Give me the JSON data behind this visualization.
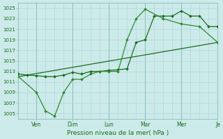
{
  "xlabel": "Pression niveau de la mer( hPa )",
  "ylim": [
    1004,
    1026
  ],
  "yticks": [
    1005,
    1007,
    1009,
    1011,
    1013,
    1015,
    1017,
    1019,
    1021,
    1023,
    1025
  ],
  "background_color": "#cceaea",
  "grid_minor_color": "#aad4d4",
  "grid_major_color": "#88bbbb",
  "line_color": "#1a6b1a",
  "line_color2": "#2d8a2d",
  "series1_x": [
    0,
    0.5,
    1,
    1.5,
    2,
    2.5,
    3,
    3.5,
    4,
    4.5,
    5,
    5.5,
    6,
    6.5,
    7,
    7.5,
    8,
    8.5,
    9,
    9.5,
    10,
    10.5,
    11
  ],
  "series1_y": [
    1012.5,
    1012.3,
    1012.2,
    1012.0,
    1012.0,
    1012.3,
    1012.8,
    1012.5,
    1013.0,
    1013.0,
    1013.2,
    1013.3,
    1013.5,
    1018.5,
    1019.0,
    1023.5,
    1023.5,
    1023.5,
    1024.5,
    1023.5,
    1023.5,
    1021.5,
    1021.5
  ],
  "series1_markers_x": [
    0,
    0.5,
    1,
    1.5,
    2,
    2.5,
    3,
    3.5,
    4,
    4.5,
    5,
    5.5,
    6,
    6.5,
    7,
    7.5,
    8,
    8.5,
    9,
    9.5,
    10,
    10.5,
    11
  ],
  "series2_x": [
    0,
    1,
    1.5,
    2,
    2.5,
    3,
    3.5,
    4,
    4.5,
    5,
    5.5,
    6,
    6.5,
    7,
    8,
    9,
    10,
    11
  ],
  "series2_y": [
    1012.0,
    1009.0,
    1005.5,
    1004.5,
    1009.0,
    1011.5,
    1011.5,
    1012.5,
    1013.0,
    1013.0,
    1013.0,
    1019.0,
    1023.0,
    1024.8,
    1023.0,
    1022.0,
    1021.5,
    1018.5
  ],
  "series3_x": [
    0,
    11
  ],
  "series3_y": [
    1012.0,
    1018.5
  ],
  "major_vline_x": [
    1,
    3,
    5,
    7,
    9,
    11
  ],
  "day_tick_x": [
    1,
    3,
    5,
    7,
    9,
    11
  ],
  "day_labels": [
    "Ven",
    "Dim",
    "Lun",
    "Mar",
    "Mer",
    "Je"
  ],
  "minor_step": 0.5,
  "xlim": [
    0,
    11
  ]
}
